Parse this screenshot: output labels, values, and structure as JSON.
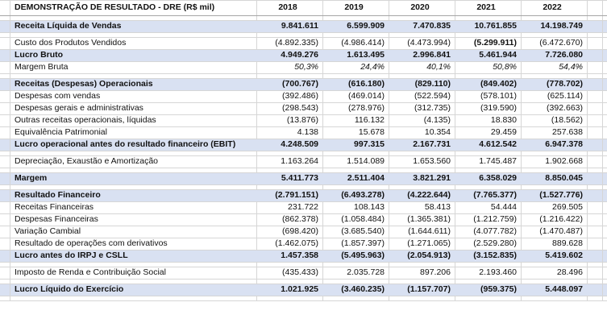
{
  "sheet": {
    "title": "DEMONSTRAÇÃO DE RESULTADO - DRE (R$ mil)",
    "years": [
      "2018",
      "2019",
      "2020",
      "2021",
      "2022"
    ],
    "colors": {
      "band": "#D9E1F2",
      "grid": "#D6D6D6",
      "header_line": "#A6A6A6",
      "text": "#111111"
    },
    "rows": [
      {
        "type": "spacer"
      },
      {
        "type": "band",
        "label": "Receita Líquida de Vendas",
        "values": [
          "9.841.611",
          "6.599.909",
          "7.470.835",
          "10.761.855",
          "14.198.749"
        ]
      },
      {
        "type": "spacer"
      },
      {
        "type": "normal",
        "label": "Custo dos Produtos Vendidos",
        "values": [
          "(4.892.335)",
          "(4.986.414)",
          "(4.473.994)",
          "(5.299.911)",
          "(6.472.670)"
        ],
        "bold_cols": [
          3
        ]
      },
      {
        "type": "band",
        "label": "Lucro Bruto",
        "values": [
          "4.949.276",
          "1.613.495",
          "2.996.841",
          "5.461.944",
          "7.726.080"
        ]
      },
      {
        "type": "percent",
        "label": "Margem Bruta",
        "values": [
          "50,3%",
          "24,4%",
          "40,1%",
          "50,8%",
          "54,4%"
        ]
      },
      {
        "type": "spacer"
      },
      {
        "type": "band",
        "label": "Receitas (Despesas) Operacionais",
        "values": [
          "(700.767)",
          "(616.180)",
          "(829.110)",
          "(849.402)",
          "(778.702)"
        ]
      },
      {
        "type": "normal",
        "label": "Despesas com vendas",
        "values": [
          "(392.486)",
          "(469.014)",
          "(522.594)",
          "(578.101)",
          "(625.114)"
        ]
      },
      {
        "type": "normal",
        "label": "Despesas gerais e administrativas",
        "values": [
          "(298.543)",
          "(278.976)",
          "(312.735)",
          "(319.590)",
          "(392.663)"
        ]
      },
      {
        "type": "normal",
        "label": "Outras receitas operacionais, líquidas",
        "values": [
          "(13.876)",
          "116.132",
          "(4.135)",
          "18.830",
          "(18.562)"
        ]
      },
      {
        "type": "normal",
        "label": "Equivalência Patrimonial",
        "values": [
          "4.138",
          "15.678",
          "10.354",
          "29.459",
          "257.638"
        ]
      },
      {
        "type": "band",
        "label": "Lucro operacional antes do resultado financeiro (EBIT)",
        "values": [
          "4.248.509",
          "997.315",
          "2.167.731",
          "4.612.542",
          "6.947.378"
        ]
      },
      {
        "type": "spacer"
      },
      {
        "type": "normal",
        "label": "Depreciação, Exaustão e Amortização",
        "values": [
          "1.163.264",
          "1.514.089",
          "1.653.560",
          "1.745.487",
          "1.902.668"
        ]
      },
      {
        "type": "spacer"
      },
      {
        "type": "band",
        "label": "Margem",
        "values": [
          "5.411.773",
          "2.511.404",
          "3.821.291",
          "6.358.029",
          "8.850.045"
        ]
      },
      {
        "type": "spacer"
      },
      {
        "type": "band",
        "label": "Resultado Financeiro",
        "values": [
          "(2.791.151)",
          "(6.493.278)",
          "(4.222.644)",
          "(7.765.377)",
          "(1.527.776)"
        ]
      },
      {
        "type": "normal",
        "label": "Receitas Financeiras",
        "values": [
          "231.722",
          "108.143",
          "58.413",
          "54.444",
          "269.505"
        ]
      },
      {
        "type": "normal",
        "label": "Despesas Financeiras",
        "values": [
          "(862.378)",
          "(1.058.484)",
          "(1.365.381)",
          "(1.212.759)",
          "(1.216.422)"
        ]
      },
      {
        "type": "normal",
        "label": "Variação Cambial",
        "values": [
          "(698.420)",
          "(3.685.540)",
          "(1.644.611)",
          "(4.077.782)",
          "(1.470.487)"
        ]
      },
      {
        "type": "normal",
        "label": "Resultado de operações com derivativos",
        "values": [
          "(1.462.075)",
          "(1.857.397)",
          "(1.271.065)",
          "(2.529.280)",
          "889.628"
        ]
      },
      {
        "type": "band",
        "label": "Lucro antes do IRPJ e CSLL",
        "values": [
          "1.457.358",
          "(5.495.963)",
          "(2.054.913)",
          "(3.152.835)",
          "5.419.602"
        ]
      },
      {
        "type": "spacer"
      },
      {
        "type": "normal",
        "label": "Imposto de Renda e Contribuição Social",
        "values": [
          "(435.433)",
          "2.035.728",
          "897.206",
          "2.193.460",
          "28.496"
        ]
      },
      {
        "type": "spacer"
      },
      {
        "type": "band",
        "label": "Lucro Líquido do Exercício",
        "values": [
          "1.021.925",
          "(3.460.235)",
          "(1.157.707)",
          "(959.375)",
          "5.448.097"
        ]
      },
      {
        "type": "spacer"
      }
    ]
  }
}
